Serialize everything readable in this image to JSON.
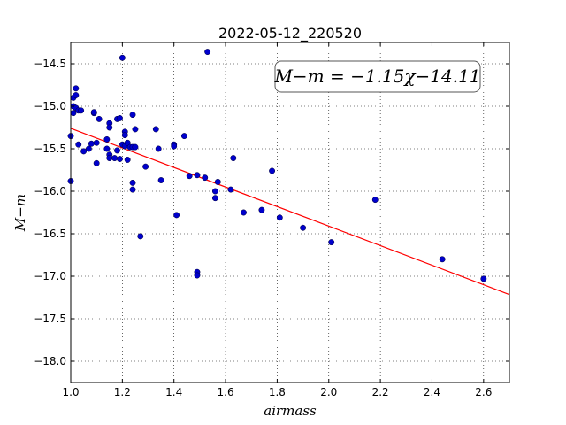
{
  "chart_data": {
    "type": "scatter",
    "title": "2022-05-12_220520",
    "xlabel": "airmass",
    "ylabel": "M−m",
    "xlim": [
      1.0,
      2.7
    ],
    "ylim": [
      -14.25,
      -18.25
    ],
    "y_inverted": true,
    "grid": true,
    "x_ticks": [
      1.0,
      1.2,
      1.4,
      1.6,
      1.8,
      2.0,
      2.2,
      2.4,
      2.6
    ],
    "x_tick_labels": [
      "1.0",
      "1.2",
      "1.4",
      "1.6",
      "1.8",
      "2.0",
      "2.2",
      "2.4",
      "2.6"
    ],
    "y_ticks": [
      -14.5,
      -15.0,
      -15.5,
      -16.0,
      -16.5,
      -17.0,
      -17.5,
      -18.0
    ],
    "y_tick_labels": [
      "−14.5",
      "−15.0",
      "−15.5",
      "−16.0",
      "−16.5",
      "−17.0",
      "−17.5",
      "−18.0"
    ],
    "annotation": "M−m = −1.15χ−14.11",
    "fit": {
      "slope": -1.15,
      "intercept": -14.11,
      "color": "#ff0000"
    },
    "point_color": "#0000cc",
    "points": [
      [
        1.0,
        -15.35
      ],
      [
        1.0,
        -15.88
      ],
      [
        1.01,
        -15.08
      ],
      [
        1.01,
        -15.0
      ],
      [
        1.01,
        -14.9
      ],
      [
        1.02,
        -14.87
      ],
      [
        1.02,
        -15.02
      ],
      [
        1.02,
        -14.79
      ],
      [
        1.03,
        -15.05
      ],
      [
        1.03,
        -15.45
      ],
      [
        1.04,
        -15.05
      ],
      [
        1.05,
        -15.53
      ],
      [
        1.07,
        -15.5
      ],
      [
        1.08,
        -15.44
      ],
      [
        1.09,
        -15.08
      ],
      [
        1.09,
        -15.07
      ],
      [
        1.1,
        -15.43
      ],
      [
        1.1,
        -15.67
      ],
      [
        1.11,
        -15.15
      ],
      [
        1.14,
        -15.39
      ],
      [
        1.14,
        -15.5
      ],
      [
        1.15,
        -15.2
      ],
      [
        1.15,
        -15.25
      ],
      [
        1.15,
        -15.57
      ],
      [
        1.15,
        -15.61
      ],
      [
        1.17,
        -15.61
      ],
      [
        1.18,
        -15.52
      ],
      [
        1.18,
        -15.15
      ],
      [
        1.19,
        -15.14
      ],
      [
        1.19,
        -15.62
      ],
      [
        1.2,
        -15.45
      ],
      [
        1.2,
        -14.43
      ],
      [
        1.21,
        -15.3
      ],
      [
        1.21,
        -15.34
      ],
      [
        1.21,
        -15.47
      ],
      [
        1.22,
        -15.43
      ],
      [
        1.22,
        -15.63
      ],
      [
        1.23,
        -15.48
      ],
      [
        1.24,
        -15.1
      ],
      [
        1.24,
        -15.48
      ],
      [
        1.24,
        -15.9
      ],
      [
        1.24,
        -15.98
      ],
      [
        1.25,
        -15.27
      ],
      [
        1.25,
        -15.48
      ],
      [
        1.27,
        -16.53
      ],
      [
        1.29,
        -15.71
      ],
      [
        1.33,
        -15.27
      ],
      [
        1.34,
        -15.5
      ],
      [
        1.35,
        -15.87
      ],
      [
        1.4,
        -15.45
      ],
      [
        1.4,
        -15.47
      ],
      [
        1.41,
        -16.28
      ],
      [
        1.44,
        -15.35
      ],
      [
        1.46,
        -15.82
      ],
      [
        1.49,
        -15.81
      ],
      [
        1.49,
        -16.95
      ],
      [
        1.49,
        -16.99
      ],
      [
        1.52,
        -15.84
      ],
      [
        1.53,
        -14.36
      ],
      [
        1.56,
        -16.0
      ],
      [
        1.56,
        -16.08
      ],
      [
        1.57,
        -15.89
      ],
      [
        1.62,
        -15.98
      ],
      [
        1.63,
        -15.61
      ],
      [
        1.67,
        -16.25
      ],
      [
        1.74,
        -16.22
      ],
      [
        1.78,
        -15.76
      ],
      [
        1.81,
        -16.31
      ],
      [
        1.9,
        -16.43
      ],
      [
        2.01,
        -16.6
      ],
      [
        2.18,
        -16.1
      ],
      [
        2.44,
        -16.8
      ],
      [
        2.6,
        -17.03
      ]
    ]
  }
}
